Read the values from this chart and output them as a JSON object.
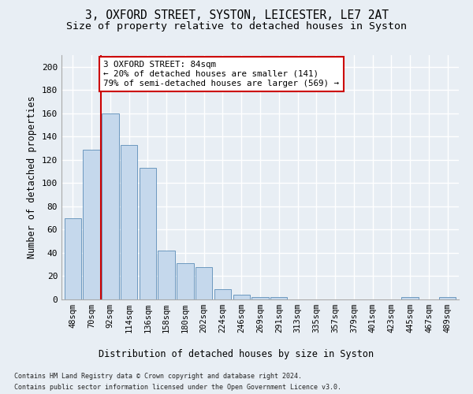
{
  "title": "3, OXFORD STREET, SYSTON, LEICESTER, LE7 2AT",
  "subtitle": "Size of property relative to detached houses in Syston",
  "xlabel": "Distribution of detached houses by size in Syston",
  "ylabel": "Number of detached properties",
  "footer_line1": "Contains HM Land Registry data © Crown copyright and database right 2024.",
  "footer_line2": "Contains public sector information licensed under the Open Government Licence v3.0.",
  "bar_labels": [
    "48sqm",
    "70sqm",
    "92sqm",
    "114sqm",
    "136sqm",
    "158sqm",
    "180sqm",
    "202sqm",
    "224sqm",
    "246sqm",
    "269sqm",
    "291sqm",
    "313sqm",
    "335sqm",
    "357sqm",
    "379sqm",
    "401sqm",
    "423sqm",
    "445sqm",
    "467sqm",
    "489sqm"
  ],
  "bar_values": [
    70,
    129,
    160,
    133,
    113,
    42,
    31,
    28,
    9,
    4,
    2,
    2,
    0,
    0,
    0,
    0,
    0,
    0,
    2,
    0,
    2
  ],
  "bar_color": "#c5d8ec",
  "bar_edge_color": "#5b8db8",
  "vline_x_index": 2,
  "vline_color": "#cc0000",
  "annotation_text": "3 OXFORD STREET: 84sqm\n← 20% of detached houses are smaller (141)\n79% of semi-detached houses are larger (569) →",
  "annotation_box_color": "#ffffff",
  "annotation_box_edge": "#cc0000",
  "ylim": [
    0,
    210
  ],
  "yticks": [
    0,
    20,
    40,
    60,
    80,
    100,
    120,
    140,
    160,
    180,
    200
  ],
  "bg_color": "#e8eef4",
  "plot_bg_color": "#e8eef4",
  "grid_color": "#ffffff",
  "title_fontsize": 10.5,
  "subtitle_fontsize": 9.5,
  "label_fontsize": 8.5,
  "tick_fontsize": 7.5,
  "footer_fontsize": 6.0
}
